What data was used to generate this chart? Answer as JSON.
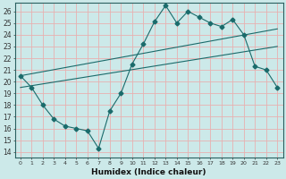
{
  "xlabel": "Humidex (Indice chaleur)",
  "xlim": [
    -0.5,
    23.5
  ],
  "ylim": [
    13.5,
    26.7
  ],
  "xticks": [
    0,
    1,
    2,
    3,
    4,
    5,
    6,
    7,
    8,
    9,
    10,
    11,
    12,
    13,
    14,
    15,
    16,
    17,
    18,
    19,
    20,
    21,
    22,
    23
  ],
  "yticks": [
    14,
    15,
    16,
    17,
    18,
    19,
    20,
    21,
    22,
    23,
    24,
    25,
    26
  ],
  "bg_color": "#cce9e9",
  "grid_color": "#e8b0b0",
  "line_color": "#1a6b6b",
  "lines": [
    {
      "x": [
        0,
        1,
        2,
        3,
        4,
        5,
        6,
        7,
        8,
        9,
        10,
        11,
        12,
        13,
        14,
        15,
        16,
        17,
        18,
        19,
        20,
        21,
        22,
        23
      ],
      "y": [
        20.5,
        19.5,
        18.0,
        16.8,
        16.2,
        16.0,
        15.8,
        14.3,
        17.5,
        19.0,
        21.5,
        23.2,
        25.1,
        26.5,
        25.0,
        26.0,
        25.5,
        25.0,
        24.7,
        25.3,
        24.0,
        21.3,
        21.0,
        19.5
      ],
      "marker": "D",
      "markersize": 2.5
    },
    {
      "x": [
        0,
        23
      ],
      "y": [
        19.5,
        23.0
      ],
      "marker": null
    },
    {
      "x": [
        0,
        23
      ],
      "y": [
        20.5,
        24.5
      ],
      "marker": null
    }
  ]
}
